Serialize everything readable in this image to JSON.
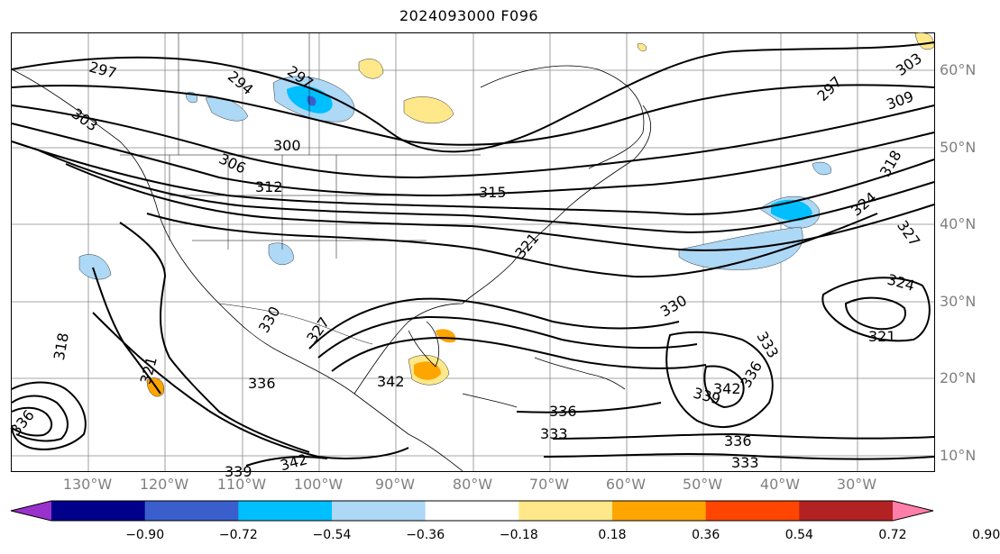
{
  "title": "2024093000 F096",
  "lat_labels": [
    "60°N",
    "50°N",
    "40°N",
    "30°N",
    "20°N",
    "10°N"
  ],
  "lon_labels": [
    "130°W",
    "120°W",
    "110°W",
    "100°W",
    "90°W",
    "80°W",
    "70°W",
    "60°W",
    "50°W",
    "40°W",
    "30°W"
  ],
  "contour_labels": [
    "297",
    "294",
    "297",
    "303",
    "300",
    "306",
    "312",
    "315",
    "321",
    "297",
    "303",
    "309",
    "318",
    "324",
    "327",
    "324",
    "321",
    "330",
    "333",
    "336",
    "339",
    "342",
    "330",
    "327",
    "321",
    "318",
    "336",
    "342",
    "336",
    "333",
    "336",
    "333",
    "339",
    "342",
    "336"
  ],
  "colorbar": {
    "ticks": [
      "−0.90",
      "−0.72",
      "−0.54",
      "−0.36",
      "−0.18",
      "0.18",
      "0.36",
      "0.54",
      "0.72",
      "0.90"
    ],
    "colors": [
      "#9932CC",
      "#00008B",
      "#3A5FCD",
      "#00BFFF",
      "#ADD8F6",
      "#FFFFFF",
      "#FFE88A",
      "#FFA500",
      "#FF4500",
      "#B22222",
      "#FF7FAA"
    ]
  }
}
